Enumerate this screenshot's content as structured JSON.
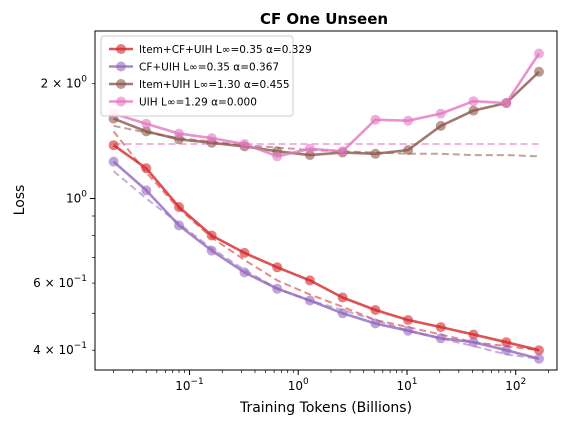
{
  "chart_data": {
    "type": "line",
    "title": "CF One Unseen",
    "xlabel": "Training Tokens (Billions)",
    "ylabel": "Loss",
    "xscale": "log",
    "yscale": "log",
    "xlim": [
      0.0135,
      240
    ],
    "ylim": [
      0.355,
      2.75
    ],
    "x_ticks": [
      {
        "value": 0.1,
        "base": "10",
        "exp": "−1"
      },
      {
        "value": 1,
        "base": "10",
        "exp": "0"
      },
      {
        "value": 10,
        "base": "10",
        "exp": "1"
      },
      {
        "value": 100,
        "base": "10",
        "exp": "2"
      }
    ],
    "y_ticks": [
      {
        "value": 0.4,
        "mant": "4 × 10",
        "exp": "−1"
      },
      {
        "value": 0.6,
        "mant": "6 × 10",
        "exp": "−1"
      },
      {
        "value": 1.0,
        "mant": "10",
        "exp": "0"
      },
      {
        "value": 2.0,
        "mant": "2 × 10",
        "exp": "0"
      }
    ],
    "legend_position": "top-left",
    "grid": false,
    "x": [
      0.02,
      0.04,
      0.08,
      0.16,
      0.32,
      0.64,
      1.28,
      2.56,
      5.12,
      10.24,
      20.48,
      40.96,
      81.92,
      163.84
    ],
    "series": [
      {
        "name": "Item+CF+UIH L∞=0.35 α=0.329",
        "color": "#d62728",
        "values": [
          1.38,
          1.2,
          0.95,
          0.8,
          0.72,
          0.66,
          0.61,
          0.55,
          0.51,
          0.48,
          0.46,
          0.44,
          0.42,
          0.4
        ],
        "fit": [
          1.5,
          1.17,
          0.94,
          0.79,
          0.69,
          0.61,
          0.56,
          0.52,
          0.48,
          0.46,
          0.44,
          0.42,
          0.41,
          0.4
        ]
      },
      {
        "name": "CF+UIH L∞=0.35 α=0.367",
        "color": "#9467bd",
        "values": [
          1.25,
          1.05,
          0.85,
          0.73,
          0.64,
          0.58,
          0.54,
          0.5,
          0.47,
          0.45,
          0.43,
          0.42,
          0.4,
          0.38
        ],
        "fit": [
          1.18,
          1.0,
          0.86,
          0.74,
          0.65,
          0.58,
          0.54,
          0.51,
          0.48,
          0.45,
          0.43,
          0.41,
          0.39,
          0.38
        ]
      },
      {
        "name": "Item+UIH L∞=1.30 α=0.455",
        "color": "#8c564b",
        "values": [
          1.62,
          1.5,
          1.43,
          1.4,
          1.37,
          1.33,
          1.3,
          1.32,
          1.31,
          1.34,
          1.55,
          1.7,
          1.78,
          2.15
        ],
        "fit": [
          1.55,
          1.49,
          1.44,
          1.41,
          1.38,
          1.36,
          1.34,
          1.33,
          1.32,
          1.31,
          1.31,
          1.3,
          1.3,
          1.29
        ]
      },
      {
        "name": "UIH L∞=1.29 α=0.000",
        "color": "#e377c2",
        "values": [
          1.67,
          1.57,
          1.48,
          1.44,
          1.39,
          1.29,
          1.35,
          1.33,
          1.61,
          1.6,
          1.67,
          1.8,
          1.78,
          2.4
        ],
        "fit": [
          1.39,
          1.39,
          1.39,
          1.39,
          1.39,
          1.39,
          1.39,
          1.39,
          1.39,
          1.39,
          1.39,
          1.39,
          1.39,
          1.39
        ]
      }
    ]
  }
}
